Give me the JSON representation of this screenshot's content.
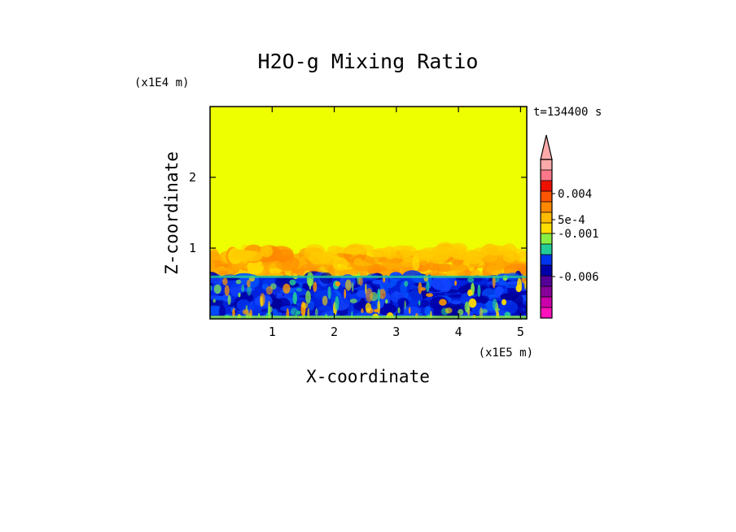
{
  "chart_data": {
    "type": "heatmap",
    "title": "H2O-g Mixing Ratio",
    "xlabel": "X-coordinate",
    "ylabel": "Z-coordinate",
    "x_unit": "(x1E5 m)",
    "y_unit": "(x1E4 m)",
    "time_label": "t=134400 s",
    "xlim": [
      0,
      5.1
    ],
    "ylim": [
      0,
      3.0
    ],
    "x_ticks": [
      1,
      2,
      3,
      4,
      5
    ],
    "x_tick_labels": [
      "1",
      "2",
      "3",
      "4",
      "5"
    ],
    "y_ticks": [
      1,
      2
    ],
    "y_tick_labels": [
      "1",
      "2"
    ],
    "field": {
      "background_color": "#eeff00",
      "cloud_top_km_x1E4": 1.0,
      "boundary_layer_top_x1E4": 0.6,
      "surface_layer_top_x1E4": 0.05
    },
    "colorbar": {
      "orientation": "vertical",
      "extend": "max",
      "colors": [
        "#ff11bb",
        "#cc00aa",
        "#880099",
        "#550099",
        "#0000aa",
        "#0033ee",
        "#22cc99",
        "#88ee44",
        "#ffdd00",
        "#ffbb00",
        "#ff8800",
        "#ff5500",
        "#ee1100",
        "#ff7788",
        "#ffaaaa"
      ],
      "tick_labels": [
        "0.004",
        "5e-4",
        "-0.001",
        "-0.006"
      ],
      "tick_levels": [
        0.004,
        0.0005,
        -0.001,
        -0.006
      ]
    }
  }
}
